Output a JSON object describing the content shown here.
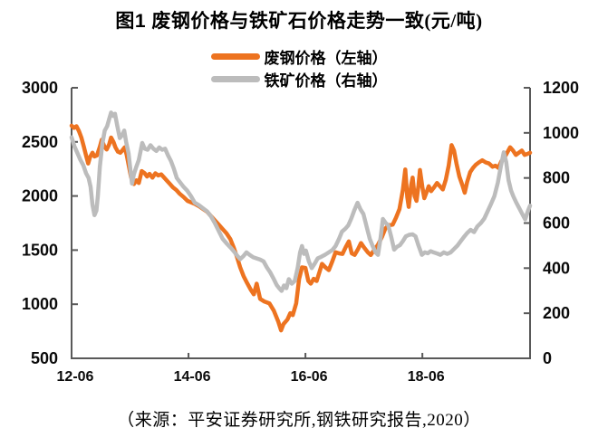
{
  "title": {
    "main": "图1 废钢价格与铁矿石价格走势一致",
    "unit": "(元/吨)"
  },
  "source_note": "（来源：平安证券研究所,钢铁研究报告,2020）",
  "chart_data": {
    "type": "line",
    "title": "图1 废钢价格与铁矿石价格走势一致(元/吨)",
    "unit": "元/吨",
    "grid": false,
    "legend_position": "top-center",
    "axis_color": "#595959",
    "text_color": "#0a0a0a",
    "background": "#ffffff",
    "x_axis": {
      "tick_labels": [
        "12-06",
        "14-06",
        "16-06",
        "18-06"
      ],
      "tick_positions_months": [
        0,
        24,
        48,
        72
      ],
      "domain_months": [
        0,
        94.1
      ],
      "description": "months since 2012-06, data ends early 2020"
    },
    "left_axis": {
      "ticks": [
        500,
        1000,
        1500,
        2000,
        2500,
        3000
      ],
      "range": [
        500,
        3000
      ]
    },
    "right_axis": {
      "ticks": [
        0,
        200,
        400,
        600,
        800,
        1000,
        1200
      ],
      "range": [
        0,
        1200
      ]
    },
    "series": [
      {
        "id": "scrap-price-line",
        "name": "废钢价格（左轴）",
        "axis": "left",
        "color": "#ED7320",
        "points": [
          [
            0,
            2650
          ],
          [
            0.5,
            2630
          ],
          [
            1,
            2645
          ],
          [
            1.5,
            2600
          ],
          [
            2,
            2540
          ],
          [
            2.5,
            2460
          ],
          [
            3,
            2370
          ],
          [
            3.4,
            2300
          ],
          [
            3.8,
            2360
          ],
          [
            4.3,
            2400
          ],
          [
            4.7,
            2365
          ],
          [
            5.2,
            2375
          ],
          [
            5.8,
            2455
          ],
          [
            6.2,
            2520
          ],
          [
            6.7,
            2460
          ],
          [
            7.2,
            2430
          ],
          [
            7.7,
            2475
          ],
          [
            8.1,
            2540
          ],
          [
            8.6,
            2500
          ],
          [
            9,
            2450
          ],
          [
            9.5,
            2410
          ],
          [
            10,
            2400
          ],
          [
            10.4,
            2420
          ],
          [
            10.9,
            2450
          ],
          [
            11.3,
            2380
          ],
          [
            11.7,
            2290
          ],
          [
            12.2,
            2175
          ],
          [
            12.8,
            2110
          ],
          [
            13.3,
            2145
          ],
          [
            13.8,
            2120
          ],
          [
            14.4,
            2230
          ],
          [
            15,
            2210
          ],
          [
            15.5,
            2180
          ],
          [
            16,
            2205
          ],
          [
            16.6,
            2170
          ],
          [
            17.2,
            2210
          ],
          [
            17.8,
            2190
          ],
          [
            18.4,
            2200
          ],
          [
            19,
            2170
          ],
          [
            19.6,
            2140
          ],
          [
            20.2,
            2110
          ],
          [
            20.8,
            2080
          ],
          [
            21.5,
            2055
          ],
          [
            22.2,
            2020
          ],
          [
            23,
            1990
          ],
          [
            23.8,
            1955
          ],
          [
            24.6,
            1940
          ],
          [
            25.4,
            1925
          ],
          [
            26.2,
            1905
          ],
          [
            27,
            1880
          ],
          [
            27.8,
            1855
          ],
          [
            28.6,
            1815
          ],
          [
            29.4,
            1775
          ],
          [
            30.2,
            1735
          ],
          [
            31,
            1695
          ],
          [
            31.8,
            1655
          ],
          [
            32.6,
            1600
          ],
          [
            33.3,
            1520
          ],
          [
            34,
            1430
          ],
          [
            34.6,
            1340
          ],
          [
            35.3,
            1260
          ],
          [
            35.9,
            1207
          ],
          [
            36.8,
            1132
          ],
          [
            37.4,
            1091
          ],
          [
            38,
            1190
          ],
          [
            38.7,
            1049
          ],
          [
            39.6,
            1024
          ],
          [
            40.6,
            1008
          ],
          [
            41.5,
            941
          ],
          [
            42.4,
            842
          ],
          [
            43,
            758
          ],
          [
            43.5,
            817
          ],
          [
            44.3,
            858
          ],
          [
            44.9,
            917
          ],
          [
            45.4,
            900
          ],
          [
            46.1,
            1008
          ],
          [
            46.7,
            1232
          ],
          [
            47.3,
            1340
          ],
          [
            48,
            1335
          ],
          [
            48.6,
            1215
          ],
          [
            49.1,
            1190
          ],
          [
            49.7,
            1235
          ],
          [
            50.3,
            1215
          ],
          [
            50.9,
            1300
          ],
          [
            51.4,
            1373
          ],
          [
            52.1,
            1340
          ],
          [
            52.8,
            1315
          ],
          [
            53.5,
            1395
          ],
          [
            54.2,
            1480
          ],
          [
            54.9,
            1470
          ],
          [
            55.6,
            1465
          ],
          [
            56.3,
            1530
          ],
          [
            56.9,
            1580
          ],
          [
            57.5,
            1470
          ],
          [
            58.1,
            1456
          ],
          [
            58.8,
            1510
          ],
          [
            59.4,
            1565
          ],
          [
            60.1,
            1520
          ],
          [
            60.8,
            1480
          ],
          [
            61.4,
            1455
          ],
          [
            62.1,
            1500
          ],
          [
            62.9,
            1550
          ],
          [
            63.7,
            1620
          ],
          [
            64.4,
            1700
          ],
          [
            65.1,
            1730
          ],
          [
            65.9,
            1735
          ],
          [
            66.6,
            1800
          ],
          [
            67.3,
            1880
          ],
          [
            68,
            2060
          ],
          [
            68.5,
            2245
          ],
          [
            68.9,
            1990
          ],
          [
            69.2,
            1900
          ],
          [
            69.7,
            2100
          ],
          [
            70,
            2170
          ],
          [
            70.4,
            2000
          ],
          [
            70.8,
            1955
          ],
          [
            71.2,
            2100
          ],
          [
            71.5,
            2240
          ],
          [
            72,
            2080
          ],
          [
            72.4,
            1980
          ],
          [
            72.9,
            2040
          ],
          [
            73.3,
            2090
          ],
          [
            73.8,
            2045
          ],
          [
            74.4,
            2080
          ],
          [
            75,
            2120
          ],
          [
            75.6,
            2090
          ],
          [
            76.2,
            2060
          ],
          [
            76.8,
            2150
          ],
          [
            77.4,
            2280
          ],
          [
            78,
            2470
          ],
          [
            78.5,
            2420
          ],
          [
            79,
            2300
          ],
          [
            79.6,
            2180
          ],
          [
            80.2,
            2100
          ],
          [
            80.7,
            2030
          ],
          [
            81.2,
            2130
          ],
          [
            81.8,
            2220
          ],
          [
            82.4,
            2260
          ],
          [
            83,
            2290
          ],
          [
            83.6,
            2310
          ],
          [
            84.3,
            2330
          ],
          [
            85,
            2310
          ],
          [
            85.7,
            2300
          ],
          [
            86.4,
            2270
          ],
          [
            87,
            2280
          ],
          [
            87.6,
            2260
          ],
          [
            88.2,
            2320
          ],
          [
            88.8,
            2350
          ],
          [
            89.4,
            2400
          ],
          [
            90,
            2450
          ],
          [
            90.6,
            2420
          ],
          [
            91.2,
            2380
          ],
          [
            91.8,
            2400
          ],
          [
            92.4,
            2420
          ],
          [
            93,
            2380
          ],
          [
            93.6,
            2390
          ],
          [
            94.1,
            2400
          ]
        ]
      },
      {
        "id": "iron-ore-price-line",
        "name": "铁矿价格（右轴）",
        "axis": "right",
        "color": "#BCBCBC",
        "points": [
          [
            0,
            980
          ],
          [
            0.6,
            940
          ],
          [
            1.2,
            910
          ],
          [
            1.8,
            880
          ],
          [
            2.4,
            857
          ],
          [
            3,
            820
          ],
          [
            3.5,
            800
          ],
          [
            3.9,
            760
          ],
          [
            4.3,
            680
          ],
          [
            4.7,
            635
          ],
          [
            5.1,
            655
          ],
          [
            5.4,
            720
          ],
          [
            5.8,
            850
          ],
          [
            6.3,
            950
          ],
          [
            6.8,
            1010
          ],
          [
            7.3,
            1030
          ],
          [
            7.7,
            1060
          ],
          [
            8.1,
            1090
          ],
          [
            8.5,
            1075
          ],
          [
            8.9,
            1085
          ],
          [
            9.4,
            1030
          ],
          [
            9.9,
            977
          ],
          [
            10.4,
            990
          ],
          [
            10.8,
            1010
          ],
          [
            11.2,
            960
          ],
          [
            11.7,
            909
          ],
          [
            12.1,
            830
          ],
          [
            12.4,
            775
          ],
          [
            12.8,
            817
          ],
          [
            13.3,
            850
          ],
          [
            13.8,
            880
          ],
          [
            14.5,
            955
          ],
          [
            15,
            930
          ],
          [
            15.6,
            925
          ],
          [
            16.2,
            945
          ],
          [
            16.8,
            930
          ],
          [
            17.4,
            920
          ],
          [
            18,
            935
          ],
          [
            18.6,
            925
          ],
          [
            19.2,
            930
          ],
          [
            19.8,
            900
          ],
          [
            20.4,
            875
          ],
          [
            21,
            841
          ],
          [
            21.6,
            800
          ],
          [
            22.3,
            780
          ],
          [
            23,
            760
          ],
          [
            23.7,
            745
          ],
          [
            24.5,
            720
          ],
          [
            25.3,
            690
          ],
          [
            26.1,
            680
          ],
          [
            27,
            665
          ],
          [
            27.8,
            652
          ],
          [
            28.6,
            630
          ],
          [
            29.4,
            600
          ],
          [
            30.2,
            565
          ],
          [
            31,
            530
          ],
          [
            31.8,
            510
          ],
          [
            32.7,
            490
          ],
          [
            33.4,
            472
          ],
          [
            34,
            455
          ],
          [
            34.6,
            440
          ],
          [
            35.2,
            452
          ],
          [
            35.9,
            470
          ],
          [
            36.6,
            458
          ],
          [
            37.3,
            448
          ],
          [
            38,
            443
          ],
          [
            38.7,
            438
          ],
          [
            39.4,
            430
          ],
          [
            40.1,
            403
          ],
          [
            40.8,
            380
          ],
          [
            41.5,
            351
          ],
          [
            42.1,
            325
          ],
          [
            42.6,
            311
          ],
          [
            43.1,
            299
          ],
          [
            43.6,
            323
          ],
          [
            44.1,
            311
          ],
          [
            44.6,
            351
          ],
          [
            45.2,
            331
          ],
          [
            45.8,
            343
          ],
          [
            46.4,
            400
          ],
          [
            46.9,
            470
          ],
          [
            47.3,
            498
          ],
          [
            47.7,
            463
          ],
          [
            48.1,
            478
          ],
          [
            48.7,
            430
          ],
          [
            49.3,
            400
          ],
          [
            49.9,
            420
          ],
          [
            50.5,
            443
          ],
          [
            51.2,
            450
          ],
          [
            52,
            459
          ],
          [
            52.8,
            470
          ],
          [
            53.5,
            480
          ],
          [
            54.2,
            498
          ],
          [
            54.9,
            530
          ],
          [
            55.5,
            562
          ],
          [
            56.2,
            575
          ],
          [
            56.8,
            590
          ],
          [
            57.4,
            620
          ],
          [
            58,
            655
          ],
          [
            58.7,
            690
          ],
          [
            59.3,
            660
          ],
          [
            59.9,
            640
          ],
          [
            60.6,
            580
          ],
          [
            61.2,
            530
          ],
          [
            61.8,
            498
          ],
          [
            62.4,
            470
          ],
          [
            62.9,
            459
          ],
          [
            63.4,
            530
          ],
          [
            63.9,
            618
          ],
          [
            64.5,
            600
          ],
          [
            65,
            590
          ],
          [
            65.6,
            540
          ],
          [
            66.2,
            482
          ],
          [
            66.8,
            495
          ],
          [
            67.4,
            502
          ],
          [
            68,
            520
          ],
          [
            68.6,
            541
          ],
          [
            69.3,
            548
          ],
          [
            70,
            550
          ],
          [
            70.6,
            541
          ],
          [
            71.2,
            500
          ],
          [
            71.9,
            459
          ],
          [
            72.5,
            470
          ],
          [
            73.1,
            466
          ],
          [
            73.7,
            475
          ],
          [
            74.3,
            470
          ],
          [
            75,
            465
          ],
          [
            75.7,
            459
          ],
          [
            76.4,
            470
          ],
          [
            77.1,
            463
          ],
          [
            77.8,
            470
          ],
          [
            78.5,
            485
          ],
          [
            79.2,
            500
          ],
          [
            79.9,
            520
          ],
          [
            80.6,
            540
          ],
          [
            81.2,
            556
          ],
          [
            81.9,
            570
          ],
          [
            82.6,
            560
          ],
          [
            83.3,
            585
          ],
          [
            84,
            600
          ],
          [
            84.7,
            620
          ],
          [
            85.4,
            652
          ],
          [
            86,
            680
          ],
          [
            86.8,
            720
          ],
          [
            87.5,
            780
          ],
          [
            88.1,
            850
          ],
          [
            88.7,
            914
          ],
          [
            89.2,
            870
          ],
          [
            89.7,
            790
          ],
          [
            90.2,
            745
          ],
          [
            90.7,
            717
          ],
          [
            91.3,
            690
          ],
          [
            91.9,
            665
          ],
          [
            92.5,
            640
          ],
          [
            93.1,
            616
          ],
          [
            93.7,
            655
          ],
          [
            94.1,
            677
          ]
        ]
      }
    ]
  }
}
